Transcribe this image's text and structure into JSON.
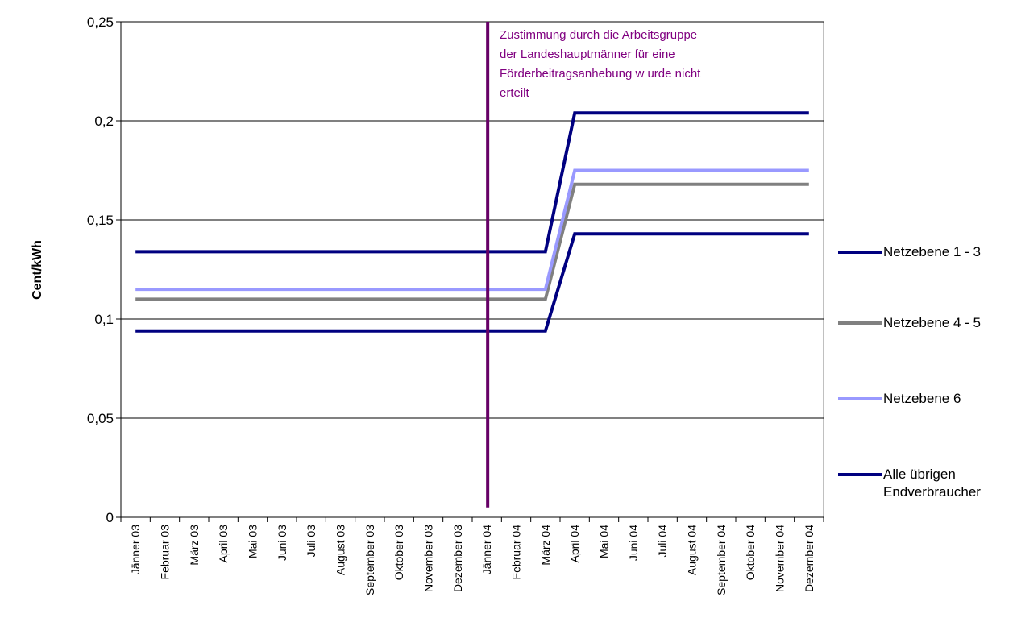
{
  "chart_data": {
    "type": "line",
    "title": "",
    "xlabel": "",
    "ylabel": "Cent/kWh",
    "ylim": [
      0,
      0.25
    ],
    "yticks": [
      "0",
      "0,05",
      "0,1",
      "0,15",
      "0,2",
      "0,25"
    ],
    "grid": "horizontal",
    "legend_position": "right",
    "categories": [
      "Jänner 03",
      "Februar 03",
      "März 03",
      "April 03",
      "Mai 03",
      "Juni 03",
      "Juli 03",
      "August 03",
      "September 03",
      "Oktober 03",
      "November 03",
      "Dezember 03",
      "Jänner 04",
      "Februar 04",
      "März 04",
      "April 04",
      "Mai 04",
      "Juni 04",
      "Juli 04",
      "August 04",
      "September 04",
      "Oktober 04",
      "November 04",
      "Dezember 04"
    ],
    "series": [
      {
        "name": "Netzebene 1 - 3",
        "color": "#000080",
        "values": [
          0.134,
          0.134,
          0.134,
          0.134,
          0.134,
          0.134,
          0.134,
          0.134,
          0.134,
          0.134,
          0.134,
          0.134,
          0.134,
          0.134,
          0.134,
          0.204,
          0.204,
          0.204,
          0.204,
          0.204,
          0.204,
          0.204,
          0.204,
          0.204
        ]
      },
      {
        "name": "Netzebene 4 - 5",
        "color": "#808080",
        "values": [
          0.11,
          0.11,
          0.11,
          0.11,
          0.11,
          0.11,
          0.11,
          0.11,
          0.11,
          0.11,
          0.11,
          0.11,
          0.11,
          0.11,
          0.11,
          0.168,
          0.168,
          0.168,
          0.168,
          0.168,
          0.168,
          0.168,
          0.168,
          0.168
        ]
      },
      {
        "name": "Netzebene 6",
        "color": "#9999ff",
        "values": [
          0.115,
          0.115,
          0.115,
          0.115,
          0.115,
          0.115,
          0.115,
          0.115,
          0.115,
          0.115,
          0.115,
          0.115,
          0.115,
          0.115,
          0.115,
          0.175,
          0.175,
          0.175,
          0.175,
          0.175,
          0.175,
          0.175,
          0.175,
          0.175
        ]
      },
      {
        "name": "Alle übrigen Endverbraucher",
        "color": "#000080",
        "values": [
          0.094,
          0.094,
          0.094,
          0.094,
          0.094,
          0.094,
          0.094,
          0.094,
          0.094,
          0.094,
          0.094,
          0.094,
          0.094,
          0.094,
          0.094,
          0.143,
          0.143,
          0.143,
          0.143,
          0.143,
          0.143,
          0.143,
          0.143,
          0.143
        ]
      }
    ],
    "marker": {
      "category": "Jänner 04",
      "color": "#660066"
    },
    "annotation": {
      "lines": [
        "Zustimmung durch die Arbeitsgruppe",
        "der Landeshauptmänner für eine",
        "Förderbeitragsanhebung w urde nicht",
        "erteilt"
      ],
      "color": "#800080"
    }
  },
  "legend": {
    "items": [
      {
        "label": "Netzebene 1 - 3",
        "color": "#000080"
      },
      {
        "label": "Netzebene 4 - 5",
        "color": "#808080"
      },
      {
        "label": "Netzebene 6",
        "color": "#9999ff"
      },
      {
        "label": "Alle übrigen Endverbraucher",
        "color": "#000080"
      }
    ]
  }
}
